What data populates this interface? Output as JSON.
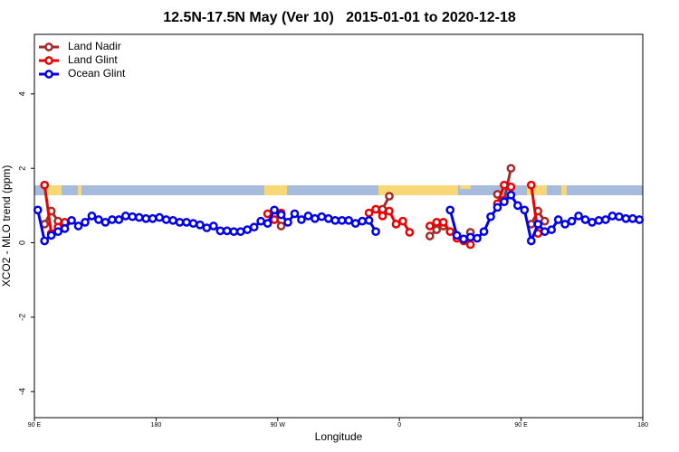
{
  "chart_data": {
    "type": "line",
    "title": "12.5N-17.5N May (Ver 10)   2015-01-01 to 2020-12-18",
    "xlabel": "Longitude",
    "ylabel": "XCO2 - MLO trend (ppm)",
    "xlim": [
      90,
      540
    ],
    "ylim": [
      -4.7,
      5.6
    ],
    "xticks": [
      {
        "value": 90,
        "label": "90 E"
      },
      180,
      {
        "value": 270,
        "label": "90 W"
      },
      {
        "value": 360,
        "label": "0"
      },
      {
        "value": 450,
        "label": "90 E"
      },
      {
        "value": 540,
        "label": "180"
      }
    ],
    "yticks": [
      -4,
      -2,
      0,
      2,
      4
    ],
    "legend": "top-left",
    "x": [
      92.5,
      97.5,
      102.5,
      107.5,
      112.5,
      117.5,
      122.5,
      127.5,
      132.5,
      137.5,
      142.5,
      147.5,
      152.5,
      157.5,
      162.5,
      167.5,
      172.5,
      177.5,
      182.5,
      187.5,
      192.5,
      197.5,
      202.5,
      207.5,
      212.5,
      217.5,
      222.5,
      227.5,
      232.5,
      237.5,
      242.5,
      247.5,
      252.5,
      257.5,
      262.5,
      267.5,
      272.5,
      277.5,
      282.5,
      287.5,
      292.5,
      297.5,
      302.5,
      307.5,
      312.5,
      317.5,
      322.5,
      327.5,
      332.5,
      337.5,
      342.5,
      347.5,
      352.5,
      357.5,
      362.5,
      367.5,
      372.5,
      377.5,
      382.5,
      387.5,
      392.5,
      397.5,
      402.5,
      407.5,
      412.5,
      417.5,
      422.5,
      427.5,
      432.5,
      437.5,
      442.5,
      447.5,
      452.5,
      457.5,
      462.5,
      467.5,
      472.5,
      477.5,
      482.5,
      487.5,
      492.5,
      497.5,
      502.5,
      507.5,
      512.5,
      517.5,
      522.5,
      527.5,
      532.5,
      537.5
    ],
    "series": [
      {
        "name": "Land Nadir",
        "color": "#a52a2a",
        "values": [
          null,
          0.5,
          0.85,
          0.58,
          null,
          null,
          null,
          null,
          null,
          null,
          null,
          null,
          null,
          null,
          null,
          null,
          null,
          null,
          null,
          null,
          null,
          null,
          null,
          null,
          null,
          null,
          null,
          null,
          null,
          null,
          null,
          null,
          null,
          null,
          null,
          0.72,
          0.45,
          null,
          null,
          null,
          null,
          null,
          null,
          null,
          null,
          null,
          null,
          null,
          null,
          null,
          null,
          0.9,
          1.25,
          null,
          null,
          null,
          null,
          null,
          0.18,
          0.35,
          0.45,
          null,
          null,
          null,
          0.28,
          null,
          null,
          null,
          1.3,
          1.15,
          2.0,
          null,
          null,
          0.5,
          0.85,
          0.58,
          null,
          null,
          null,
          null,
          null,
          null,
          null,
          null,
          null,
          null,
          null,
          null,
          null,
          null
        ]
      },
      {
        "name": "Land Glint",
        "color": "#ee0000",
        "values": [
          null,
          1.55,
          0.25,
          0.42,
          0.55,
          null,
          null,
          null,
          null,
          null,
          null,
          null,
          null,
          null,
          null,
          null,
          null,
          null,
          null,
          null,
          null,
          null,
          null,
          null,
          null,
          null,
          null,
          null,
          null,
          null,
          null,
          null,
          null,
          null,
          0.78,
          0.62,
          0.8,
          null,
          null,
          null,
          null,
          null,
          null,
          null,
          null,
          null,
          null,
          null,
          null,
          0.8,
          0.9,
          0.72,
          0.85,
          0.5,
          0.58,
          0.28,
          null,
          null,
          0.45,
          0.55,
          0.55,
          0.3,
          0.12,
          0.05,
          -0.05,
          null,
          null,
          null,
          1.05,
          1.55,
          1.5,
          null,
          null,
          1.55,
          0.25,
          null,
          null,
          null,
          null,
          null,
          null,
          null,
          null,
          null,
          null,
          null,
          null,
          null,
          null,
          null
        ]
      },
      {
        "name": "Ocean Glint",
        "color": "#0000ee",
        "values": [
          0.88,
          0.05,
          0.2,
          0.3,
          0.38,
          0.6,
          0.45,
          0.55,
          0.72,
          0.62,
          0.55,
          0.62,
          0.62,
          0.72,
          0.7,
          0.68,
          0.65,
          0.65,
          0.68,
          0.62,
          0.6,
          0.55,
          0.55,
          0.52,
          0.48,
          0.4,
          0.45,
          0.32,
          0.32,
          0.3,
          0.3,
          0.35,
          0.42,
          0.58,
          0.52,
          0.88,
          0.75,
          0.55,
          0.78,
          0.62,
          0.72,
          0.65,
          0.7,
          0.65,
          0.6,
          0.6,
          0.6,
          0.52,
          0.58,
          0.6,
          0.3,
          null,
          null,
          null,
          null,
          null,
          null,
          null,
          null,
          null,
          null,
          0.88,
          0.2,
          0.1,
          0.15,
          0.12,
          0.3,
          0.7,
          0.95,
          1.1,
          1.28,
          1.0,
          0.88,
          0.05,
          0.5,
          0.3,
          0.35,
          0.62,
          0.5,
          0.58,
          0.72,
          0.62,
          0.55,
          0.6,
          0.62,
          0.72,
          0.7,
          0.65,
          0.65,
          0.62
        ]
      }
    ]
  }
}
